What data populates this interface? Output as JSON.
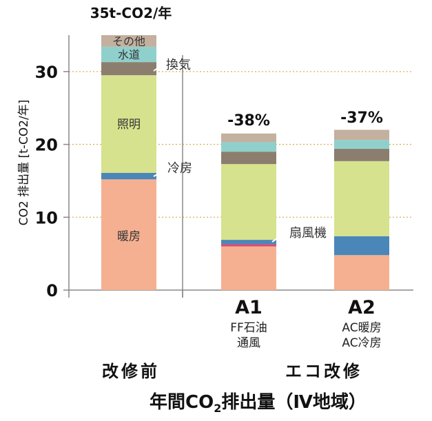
{
  "chart_data": {
    "type": "bar",
    "stacked": true,
    "title": "年間CO2排出量（Ⅳ地域）",
    "title_main": "年間CO",
    "title_sub": "2",
    "title_rest": "排出量（Ⅳ地域）",
    "ylabel": "CO2 排出量 [t-CO2/年]",
    "ylim": [
      0,
      35
    ],
    "yticks": [
      "0",
      "10",
      "20",
      "30"
    ],
    "grid": "horizontal dotted",
    "categories": [
      {
        "name": "",
        "sub1": "",
        "sub2": ""
      },
      {
        "name": "A1",
        "sub1": "FF石油",
        "sub2": "通風"
      },
      {
        "name": "A2",
        "sub1": "AC暖房",
        "sub2": "AC冷房"
      }
    ],
    "group_labels": [
      "改修前",
      "エコ改修"
    ],
    "top_labels": [
      "35t-CO2/年",
      "-38%",
      "-37%"
    ],
    "totals": [
      35,
      21.5,
      22
    ],
    "series": [
      {
        "name": "暖房",
        "color": "#f5b091",
        "values": [
          15.2,
          6.0,
          4.8
        ]
      },
      {
        "name": "扇風機",
        "color": "#d64a73",
        "values": [
          0,
          0.3,
          0
        ]
      },
      {
        "name": "冷房",
        "color": "#4b86b8",
        "values": [
          0.9,
          0.6,
          2.6
        ]
      },
      {
        "name": "照明",
        "color": "#d6e28d",
        "values": [
          13.4,
          10.4,
          10.3
        ]
      },
      {
        "name": "換気",
        "color": "#8c7e6e",
        "values": [
          1.8,
          1.7,
          1.7
        ]
      },
      {
        "name": "水道",
        "color": "#8fd0cc",
        "values": [
          2.1,
          1.3,
          1.2
        ]
      },
      {
        "name": "その他",
        "color": "#c4b09e",
        "values": [
          1.6,
          1.2,
          1.4
        ]
      }
    ],
    "inline_labels": [
      {
        "series": "暖房",
        "text": "暖房"
      },
      {
        "series": "照明",
        "text": "照明"
      },
      {
        "series": "その他",
        "text": "その他"
      },
      {
        "series": "水道",
        "text": "水道"
      }
    ],
    "callouts": [
      {
        "text": "換気"
      },
      {
        "text": "冷房"
      },
      {
        "text": "扇風機"
      }
    ]
  }
}
